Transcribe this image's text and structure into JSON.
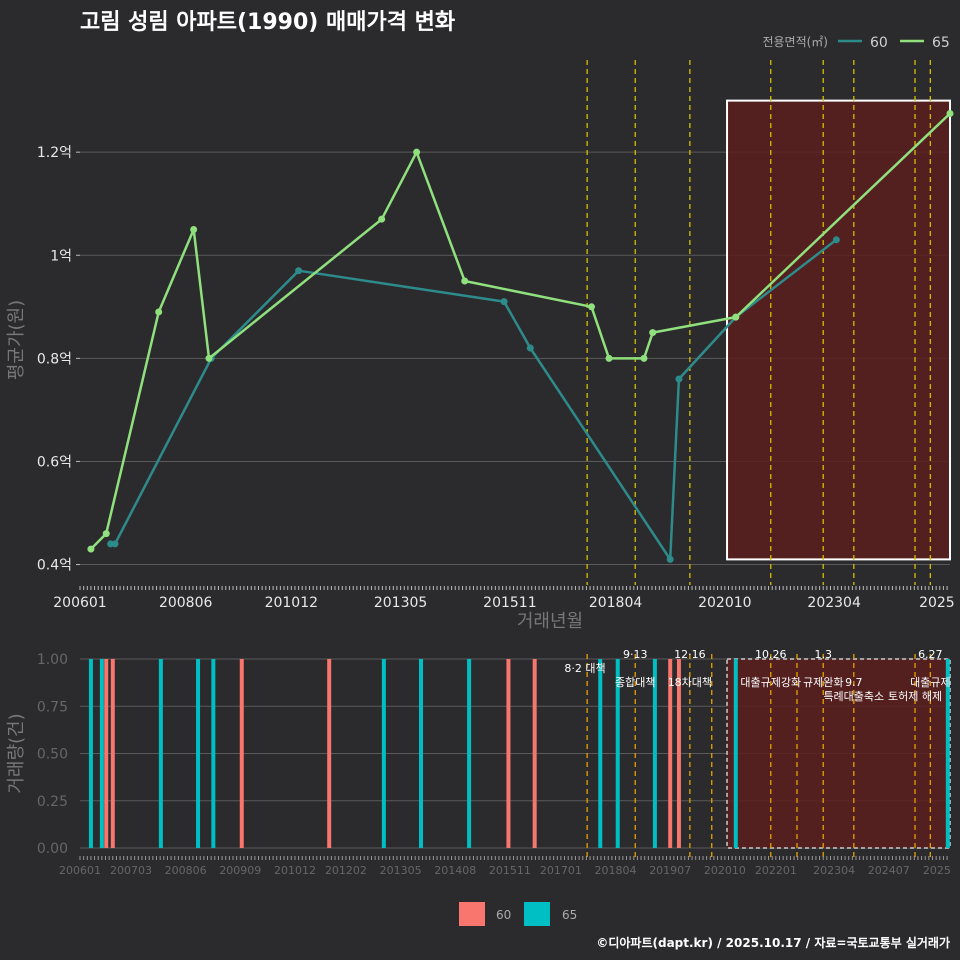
{
  "title": "고림 성림 아파트(1990) 매매가격 변화",
  "credit": "©디아파트(dapt.kr) / 2025.10.17 / 자료=국토교통부 실거래가",
  "colors": {
    "background": "#2b2b2d",
    "grid": "#5a5a5a",
    "line_60": "#2e8b8b",
    "line_65": "#90e07e",
    "bar_60": "#f8766d",
    "bar_65": "#00bfc4",
    "policy_line": "#d4c000",
    "policy_line_bottom": "#e6a100",
    "highlight_fill": "#5a1d1d",
    "highlight_border": "#ffffff"
  },
  "chart_data": [
    {
      "type": "line",
      "title": "고림 성림 아파트(1990) 매매가격 변화",
      "xlabel": "거래년월",
      "ylabel": "평균가(원)",
      "xlim": [
        2006.0,
        2025.9
      ],
      "ylim": [
        0.37,
        1.34
      ],
      "y_ticks": [
        {
          "value": 0.4,
          "label": "0.4억"
        },
        {
          "value": 0.6,
          "label": "0.6억"
        },
        {
          "value": 0.8,
          "label": "0.8억"
        },
        {
          "value": 1.0,
          "label": "1억"
        },
        {
          "value": 1.2,
          "label": "1.2억"
        }
      ],
      "x_ticks": [
        {
          "value": 2006.0,
          "label": "200601"
        },
        {
          "value": 2008.417,
          "label": "200806"
        },
        {
          "value": 2010.833,
          "label": "201012"
        },
        {
          "value": 2013.333,
          "label": "201305"
        },
        {
          "value": 2015.833,
          "label": "201511"
        },
        {
          "value": 2018.25,
          "label": "201804"
        },
        {
          "value": 2020.75,
          "label": "202010"
        },
        {
          "value": 2023.25,
          "label": "202304"
        },
        {
          "value": 2025.6,
          "label": "2025"
        }
      ],
      "legend_title": "전용면적(㎡)",
      "legend_position": "top-right",
      "series": [
        {
          "name": "60",
          "x": [
            2006.7,
            2006.8,
            2009.0,
            2011.0,
            2015.7,
            2016.3,
            2019.5,
            2019.7,
            2021.0,
            2023.3
          ],
          "y": [
            0.44,
            0.44,
            0.8,
            0.97,
            0.91,
            0.82,
            0.41,
            0.76,
            0.88,
            1.03
          ]
        },
        {
          "name": "65",
          "x": [
            2006.25,
            2006.6,
            2007.8,
            2008.6,
            2008.95,
            2012.9,
            2013.7,
            2014.8,
            2017.7,
            2018.1,
            2018.9,
            2019.1,
            2021.0,
            2025.9
          ],
          "y": [
            0.43,
            0.46,
            0.89,
            1.05,
            0.8,
            1.07,
            1.2,
            0.95,
            0.9,
            0.8,
            0.8,
            0.85,
            0.88,
            1.275
          ]
        }
      ],
      "policy_dates": [
        2017.6,
        2018.7,
        2019.95,
        2021.8,
        2023.0,
        2023.7,
        2025.1,
        2025.45
      ],
      "highlight_range": {
        "x": [
          2020.8,
          2025.9
        ],
        "y": [
          0.41,
          1.3
        ]
      }
    },
    {
      "type": "bar",
      "ylabel": "거래량(건)",
      "xlim": [
        2006.0,
        2025.9
      ],
      "ylim": [
        0,
        1.0
      ],
      "y_ticks": [
        {
          "value": 0.0,
          "label": "0.00"
        },
        {
          "value": 0.25,
          "label": "0.25"
        },
        {
          "value": 0.5,
          "label": "0.50"
        },
        {
          "value": 0.75,
          "label": "0.75"
        },
        {
          "value": 1.0,
          "label": "1.00"
        }
      ],
      "x_ticks": [
        {
          "value": 2006.0,
          "label": "200601"
        },
        {
          "value": 2007.167,
          "label": "200703"
        },
        {
          "value": 2008.417,
          "label": "200806"
        },
        {
          "value": 2009.667,
          "label": "200909"
        },
        {
          "value": 2010.917,
          "label": "201012"
        },
        {
          "value": 2012.083,
          "label": "201202"
        },
        {
          "value": 2013.333,
          "label": "201305"
        },
        {
          "value": 2014.583,
          "label": "201408"
        },
        {
          "value": 2015.833,
          "label": "201511"
        },
        {
          "value": 2017.0,
          "label": "201701"
        },
        {
          "value": 2018.25,
          "label": "201804"
        },
        {
          "value": 2019.5,
          "label": "201907"
        },
        {
          "value": 2020.75,
          "label": "202010"
        },
        {
          "value": 2021.917,
          "label": "202201"
        },
        {
          "value": 2023.25,
          "label": "202304"
        },
        {
          "value": 2024.5,
          "label": "202407"
        },
        {
          "value": 2025.6,
          "label": "2025"
        }
      ],
      "legend_entries": [
        "60",
        "65"
      ],
      "legend_position": "bottom",
      "bars_65": [
        2006.25,
        2006.5,
        2007.85,
        2008.7,
        2009.05,
        2012.95,
        2013.8,
        2014.9,
        2017.9,
        2018.3,
        2019.15,
        2021.0,
        2025.85
      ],
      "bars_60": [
        2006.6,
        2006.75,
        2009.7,
        2011.7,
        2015.8,
        2016.4,
        2019.5,
        2019.7
      ],
      "bar_value": 1,
      "policy_dates": [
        2017.6,
        2018.7,
        2019.95,
        2020.45,
        2021.8,
        2022.4,
        2023.0,
        2023.7,
        2025.1,
        2025.45
      ],
      "highlight_range": {
        "x": [
          2020.8,
          2025.9
        ],
        "y": [
          0,
          1.0
        ]
      },
      "annotations": [
        {
          "x": 2017.55,
          "line": 0,
          "text": "8·2 대책"
        },
        {
          "x": 2018.7,
          "line": -1,
          "text": "9·13"
        },
        {
          "x": 2018.7,
          "line": 1,
          "text": "종합대책"
        },
        {
          "x": 2019.95,
          "line": -1,
          "text": "12·16"
        },
        {
          "x": 2019.95,
          "line": 1,
          "text": "18차대책"
        },
        {
          "x": 2021.8,
          "line": -1,
          "text": "10.26"
        },
        {
          "x": 2021.8,
          "line": 1,
          "text": "대출규제강화"
        },
        {
          "x": 2023.0,
          "line": -1,
          "text": "1.3"
        },
        {
          "x": 2023.0,
          "line": 1,
          "text": "규제완화"
        },
        {
          "x": 2023.7,
          "line": 1,
          "text": "9.7"
        },
        {
          "x": 2023.7,
          "line": 2,
          "text": "특례대출축소"
        },
        {
          "x": 2025.1,
          "line": 2,
          "text": "토허제 해제"
        },
        {
          "x": 2025.45,
          "line": -1,
          "text": "6.27"
        },
        {
          "x": 2025.45,
          "line": 1,
          "text": "대출규제"
        }
      ]
    }
  ]
}
